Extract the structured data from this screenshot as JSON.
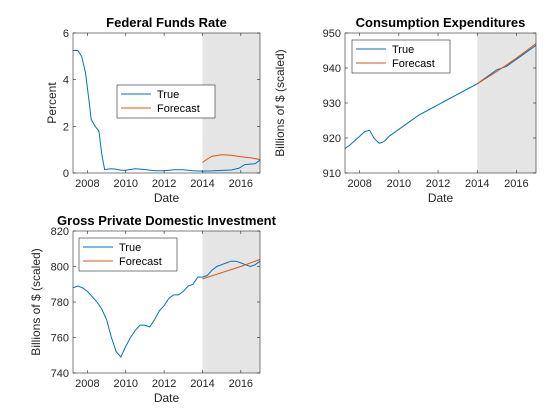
{
  "chart_data": [
    {
      "id": "ffr",
      "type": "line",
      "title": "Federal Funds Rate",
      "xlabel": "Date",
      "ylabel": "Percent",
      "xlim": [
        2007.25,
        2017.0
      ],
      "ylim": [
        0,
        6
      ],
      "xticks": [
        2008,
        2010,
        2012,
        2014,
        2016
      ],
      "yticks": [
        0,
        2,
        4,
        6
      ],
      "forecast_region": [
        2014.0,
        2017.0
      ],
      "legend": "center",
      "series": [
        {
          "name": "True",
          "color": "#0072BD",
          "x": [
            2007.25,
            2007.5,
            2007.7,
            2007.9,
            2008.1,
            2008.2,
            2008.4,
            2008.6,
            2008.75,
            2008.9,
            2009.0,
            2009.25,
            2009.5,
            2009.75,
            2010.0,
            2010.5,
            2011.0,
            2011.5,
            2012.0,
            2012.5,
            2013.0,
            2013.5,
            2014.0,
            2014.5,
            2015.0,
            2015.5,
            2015.9,
            2016.2,
            2016.5,
            2016.75,
            2017.0
          ],
          "y": [
            5.25,
            5.25,
            5.0,
            4.3,
            3.0,
            2.3,
            2.0,
            1.8,
            0.8,
            0.15,
            0.16,
            0.18,
            0.16,
            0.12,
            0.12,
            0.18,
            0.15,
            0.1,
            0.1,
            0.14,
            0.14,
            0.1,
            0.08,
            0.09,
            0.11,
            0.13,
            0.2,
            0.36,
            0.38,
            0.4,
            0.55
          ]
        },
        {
          "name": "Forecast",
          "color": "#D95319",
          "x": [
            2014.0,
            2014.25,
            2014.5,
            2014.75,
            2015.0,
            2015.5,
            2016.0,
            2016.5,
            2017.0
          ],
          "y": [
            0.45,
            0.6,
            0.72,
            0.75,
            0.78,
            0.76,
            0.7,
            0.65,
            0.58
          ]
        }
      ]
    },
    {
      "id": "pce",
      "type": "line",
      "title": "Consumption Expenditures",
      "xlabel": "Date",
      "ylabel": "Billions of $ (scaled)",
      "xlim": [
        2007.25,
        2017.0
      ],
      "ylim": [
        910,
        950
      ],
      "xticks": [
        2008,
        2010,
        2012,
        2014,
        2016
      ],
      "yticks": [
        910,
        920,
        930,
        940,
        950
      ],
      "forecast_region": [
        2014.0,
        2017.0
      ],
      "legend": "top-left",
      "series": [
        {
          "name": "True",
          "color": "#0072BD",
          "x": [
            2007.25,
            2007.5,
            2008.0,
            2008.25,
            2008.5,
            2008.75,
            2009.0,
            2009.25,
            2009.5,
            2010.0,
            2010.5,
            2011.0,
            2011.5,
            2012.0,
            2012.5,
            2013.0,
            2013.5,
            2014.0,
            2014.5,
            2015.0,
            2015.5,
            2016.0,
            2016.5,
            2017.0
          ],
          "y": [
            917.0,
            918.0,
            920.5,
            921.8,
            922.2,
            919.8,
            918.5,
            919.0,
            920.5,
            922.5,
            924.5,
            926.5,
            928.0,
            929.5,
            931.0,
            932.5,
            934.0,
            935.5,
            937.5,
            939.5,
            940.5,
            942.5,
            944.5,
            946.5
          ]
        },
        {
          "name": "Forecast",
          "color": "#D95319",
          "x": [
            2014.0,
            2015.0,
            2016.0,
            2017.0
          ],
          "y": [
            935.5,
            939.0,
            942.8,
            947.0
          ]
        }
      ]
    },
    {
      "id": "gpdi",
      "type": "line",
      "title": "Gross Private Domestic Investment",
      "xlabel": "Date",
      "ylabel": "Billions of $ (scaled)",
      "xlim": [
        2007.25,
        2017.0
      ],
      "ylim": [
        740,
        820
      ],
      "xticks": [
        2008,
        2010,
        2012,
        2014,
        2016
      ],
      "yticks": [
        740,
        760,
        780,
        800,
        820
      ],
      "forecast_region": [
        2014.0,
        2017.0
      ],
      "legend": "top-left",
      "series": [
        {
          "name": "True",
          "color": "#0072BD",
          "x": [
            2007.25,
            2007.5,
            2007.75,
            2008.0,
            2008.25,
            2008.5,
            2008.75,
            2009.0,
            2009.25,
            2009.5,
            2009.75,
            2010.0,
            2010.25,
            2010.5,
            2010.75,
            2011.0,
            2011.25,
            2011.5,
            2011.75,
            2012.0,
            2012.25,
            2012.5,
            2012.75,
            2013.0,
            2013.25,
            2013.5,
            2013.75,
            2014.0,
            2014.25,
            2014.5,
            2014.75,
            2015.0,
            2015.25,
            2015.5,
            2015.75,
            2016.0,
            2016.25,
            2016.5,
            2016.75,
            2017.0
          ],
          "y": [
            788,
            789,
            788,
            786,
            783,
            780,
            776,
            770,
            760,
            752,
            749,
            755,
            760,
            764,
            767,
            767,
            766,
            770,
            775,
            778,
            782,
            784,
            784,
            786,
            789,
            790,
            794,
            794,
            795,
            798,
            800,
            801,
            802,
            803,
            803,
            802,
            801,
            800,
            801,
            803
          ]
        },
        {
          "name": "Forecast",
          "color": "#D95319",
          "x": [
            2014.0,
            2015.0,
            2016.0,
            2017.0
          ],
          "y": [
            793.0,
            796.5,
            800.0,
            804.0
          ]
        }
      ]
    }
  ]
}
